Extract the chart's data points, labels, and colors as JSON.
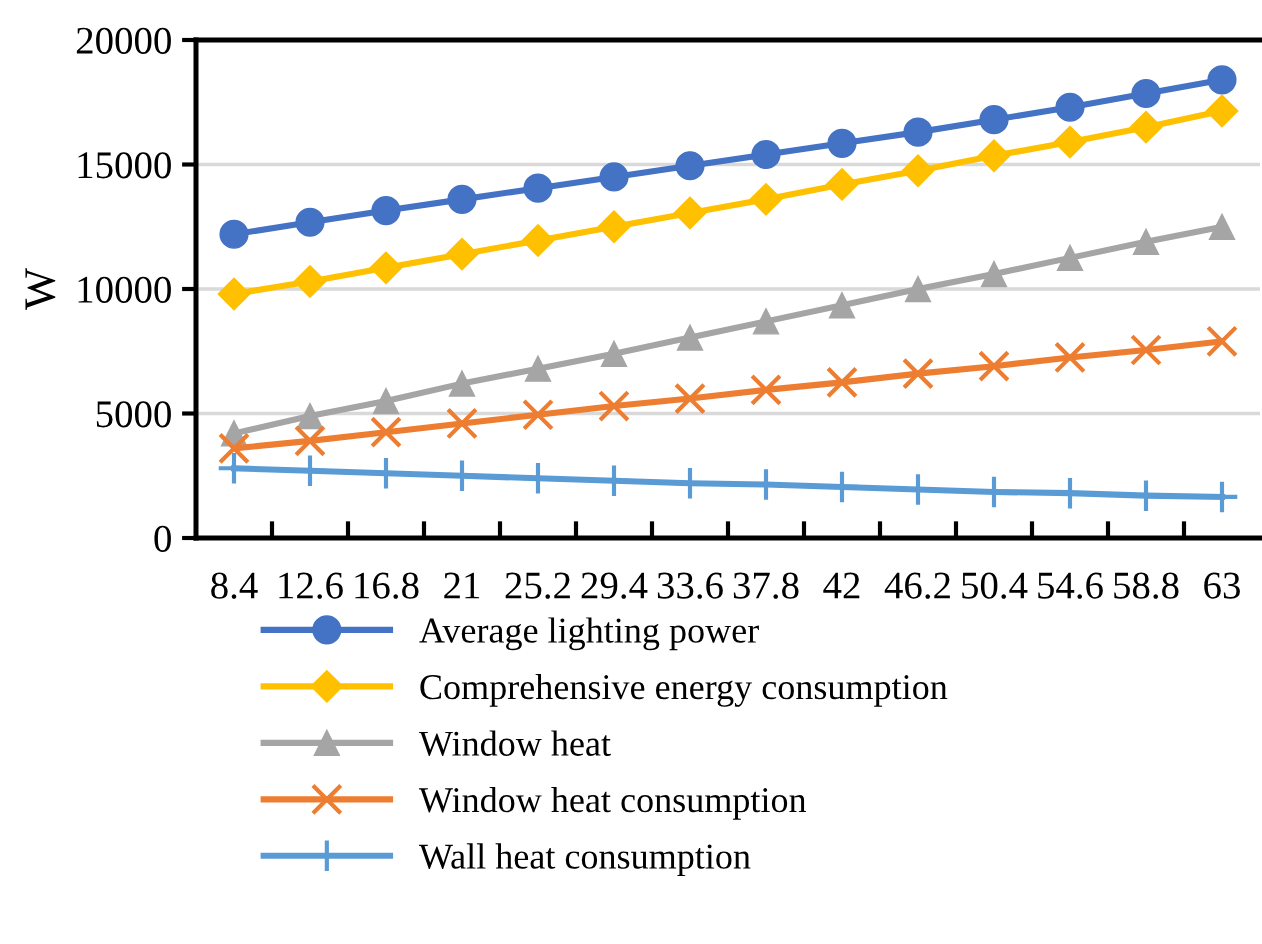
{
  "chart_data": {
    "type": "line",
    "ylabel": "W",
    "categories": [
      "8.4",
      "12.6",
      "16.8",
      "21",
      "25.2",
      "29.4",
      "33.6",
      "37.8",
      "42",
      "46.2",
      "50.4",
      "54.6",
      "58.8",
      "63"
    ],
    "ylim": [
      0,
      20000
    ],
    "yticks": [
      0,
      5000,
      10000,
      15000,
      20000
    ],
    "grid": "y",
    "legend": "bottom",
    "series": [
      {
        "name": "Average lighting power",
        "color": "#4472c4",
        "marker": "circle",
        "values": [
          12200,
          12680,
          13150,
          13600,
          14050,
          14500,
          14950,
          15400,
          15850,
          16300,
          16800,
          17300,
          17850,
          18400
        ]
      },
      {
        "name": "Comprehensive energy consumption",
        "color": "#ffc000",
        "marker": "diamond",
        "values": [
          9800,
          10300,
          10850,
          11400,
          11950,
          12500,
          13050,
          13600,
          14200,
          14750,
          15350,
          15900,
          16500,
          17150
        ]
      },
      {
        "name": "Window heat",
        "color": "#a5a5a5",
        "marker": "triangle",
        "values": [
          4200,
          4900,
          5500,
          6200,
          6800,
          7400,
          8050,
          8700,
          9350,
          10000,
          10600,
          11250,
          11900,
          12500
        ]
      },
      {
        "name": "Window heat consumption",
        "color": "#ed7d31",
        "marker": "cross",
        "values": [
          3600,
          3900,
          4250,
          4600,
          4950,
          5300,
          5600,
          5950,
          6250,
          6600,
          6900,
          7250,
          7550,
          7900
        ]
      },
      {
        "name": "Wall heat consumption",
        "color": "#5b9bd5",
        "marker": "plus",
        "values": [
          2800,
          2700,
          2600,
          2500,
          2400,
          2300,
          2200,
          2150,
          2050,
          1950,
          1850,
          1800,
          1700,
          1650
        ]
      }
    ]
  }
}
